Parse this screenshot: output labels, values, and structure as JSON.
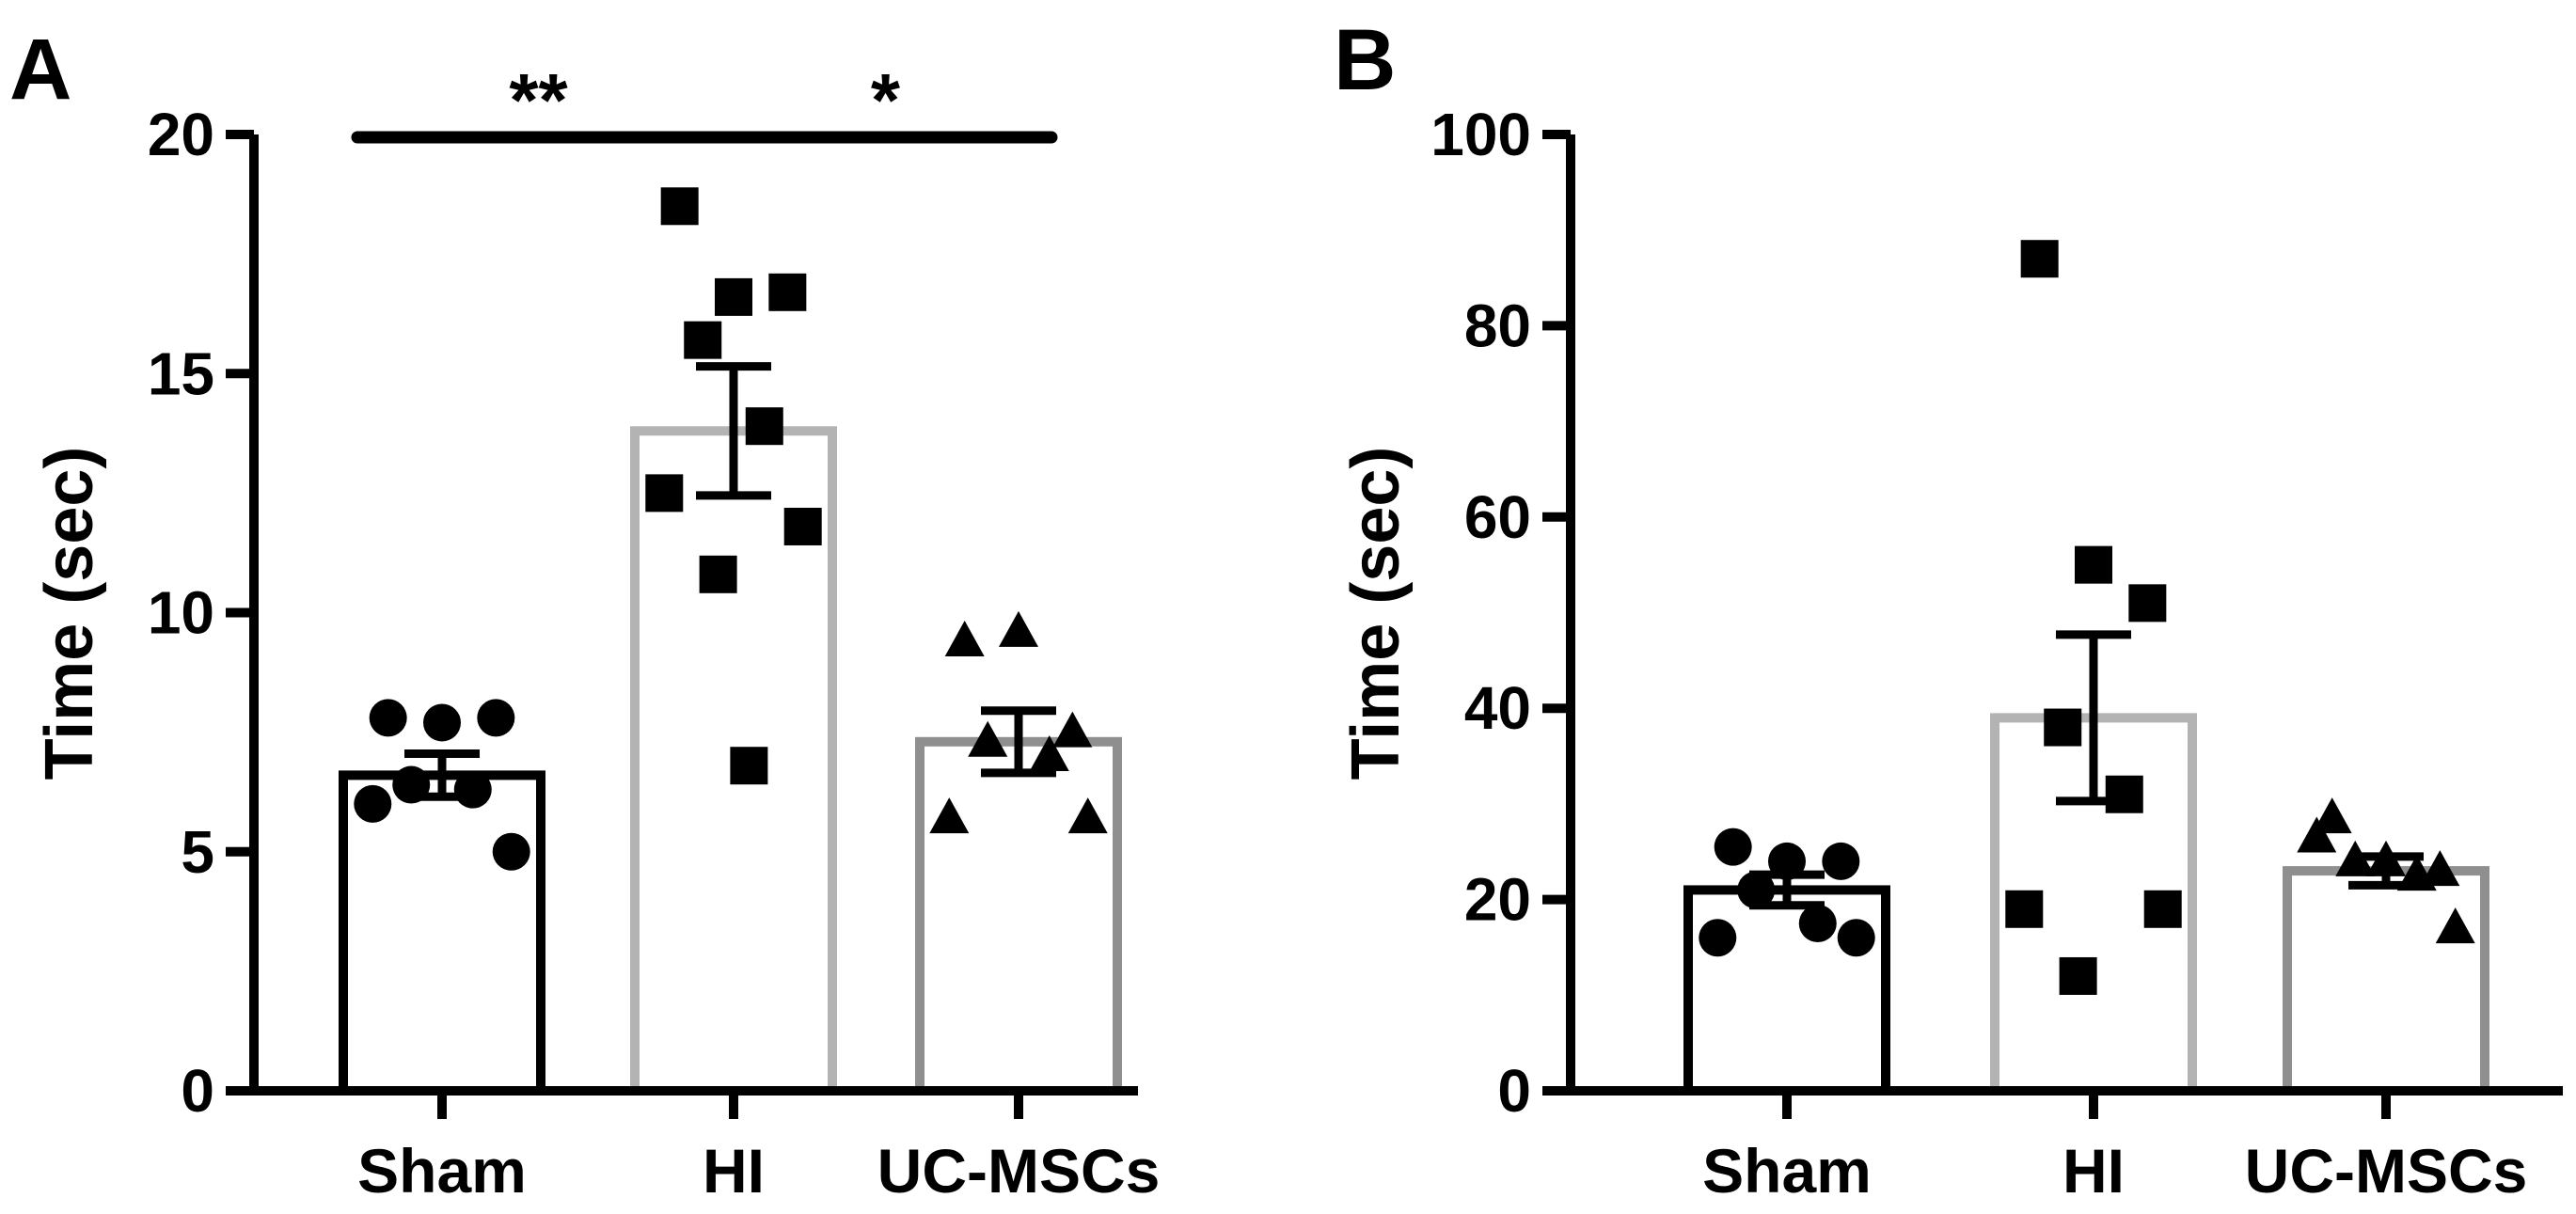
{
  "chart_data": [
    {
      "panel_label": "A",
      "type": "bar",
      "categories": [
        "Sham",
        "HI",
        "UC-MSCs"
      ],
      "ylabel": "Time (sec)",
      "ylim": [
        0,
        20
      ],
      "yticks": [
        "0",
        "5",
        "10",
        "15",
        "20"
      ],
      "ytick_values": [
        0,
        5,
        10,
        15,
        20
      ],
      "series": [
        {
          "name": "Sham",
          "mean": 6.6,
          "sem": 0.45,
          "color": "#000000",
          "marker": "circle",
          "points": [
            7.8,
            7.7,
            7.8,
            6.4,
            6.3,
            6.0,
            5.0
          ]
        },
        {
          "name": "HI",
          "mean": 13.8,
          "sem": 1.35,
          "color": "#b3b3b3",
          "marker": "square",
          "points": [
            18.5,
            16.6,
            16.7,
            15.7,
            13.9,
            12.5,
            11.8,
            10.8,
            6.8
          ]
        },
        {
          "name": "UC-MSCs",
          "mean": 7.3,
          "sem": 0.65,
          "color": "#8f8f8f",
          "marker": "triangle",
          "points": [
            9.4,
            9.6,
            7.5,
            7.3,
            7.0,
            5.7,
            5.7
          ]
        }
      ],
      "significance": [
        {
          "from": 0,
          "to": 1,
          "label": "**"
        },
        {
          "from": 1,
          "to": 2,
          "label": "*"
        }
      ]
    },
    {
      "panel_label": "B",
      "type": "bar",
      "categories": [
        "Sham",
        "HI",
        "UC-MSCs"
      ],
      "ylabel": "Time (sec)",
      "ylim": [
        0,
        100
      ],
      "yticks": [
        "0",
        "20",
        "40",
        "60",
        "80",
        "100"
      ],
      "ytick_values": [
        0,
        20,
        40,
        60,
        80,
        100
      ],
      "series": [
        {
          "name": "Sham",
          "mean": 21,
          "sem": 1.6,
          "color": "#000000",
          "marker": "circle",
          "points": [
            25.5,
            24.0,
            24.0,
            21.0,
            17.5,
            16.0,
            16.0
          ]
        },
        {
          "name": "HI",
          "mean": 39,
          "sem": 8.7,
          "color": "#b3b3b3",
          "marker": "square",
          "points": [
            87,
            55,
            51,
            38,
            31,
            19,
            19,
            12
          ]
        },
        {
          "name": "UC-MSCs",
          "mean": 23,
          "sem": 1.5,
          "color": "#8f8f8f",
          "marker": "triangle",
          "points": [
            28.5,
            24.0,
            23.0,
            24.0,
            22.5,
            26.5,
            17.0
          ]
        }
      ],
      "significance": []
    }
  ]
}
